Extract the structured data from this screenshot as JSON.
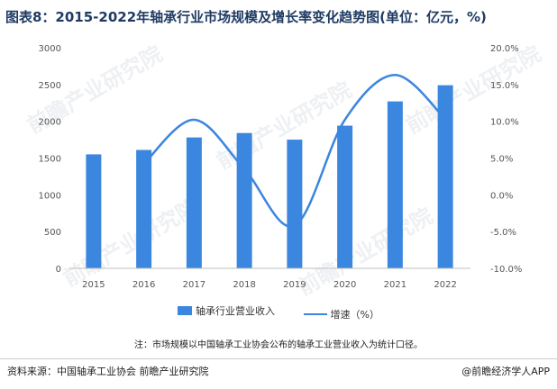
{
  "title": "图表8：2015-2022年轴承行业市场规模及增长率变化趋势图(单位：亿元，%)",
  "note": "注：市场规模以中国轴承工业协会公布的轴承工业营业收入为统计口径。",
  "source": "资料来源：中国轴承工业协会 前瞻产业研究院",
  "brand": "@前瞻经济学人APP",
  "watermark": "前瞻产业研究院",
  "colors": {
    "bar": "#3b86de",
    "line": "#3b86de",
    "axis": "#bfbfbf",
    "title": "#1f3b63"
  },
  "chart_data": {
    "type": "bar",
    "categories": [
      "2015",
      "2016",
      "2017",
      "2018",
      "2019",
      "2020",
      "2021",
      "2022"
    ],
    "series": [
      {
        "name": "轴承行业营业收入",
        "type": "bar",
        "axis": "left",
        "values": [
          1550,
          1610,
          1780,
          1840,
          1750,
          1940,
          2270,
          2490
        ]
      },
      {
        "name": "增速（%）",
        "type": "line",
        "axis": "right",
        "values": [
          null,
          4.2,
          10.2,
          3.5,
          -4.2,
          10.2,
          16.3,
          10.3
        ]
      }
    ],
    "left_axis": {
      "min": 0,
      "max": 3000,
      "ticks": [
        "0",
        "500",
        "1000",
        "1500",
        "2000",
        "2500",
        "3000"
      ]
    },
    "right_axis": {
      "min": -10,
      "max": 20,
      "ticks": [
        "-10.0%",
        "-5.0%",
        "0.0%",
        "5.0%",
        "10.0%",
        "15.0%",
        "20.0%"
      ]
    },
    "legend_position": "bottom",
    "grid": false
  }
}
